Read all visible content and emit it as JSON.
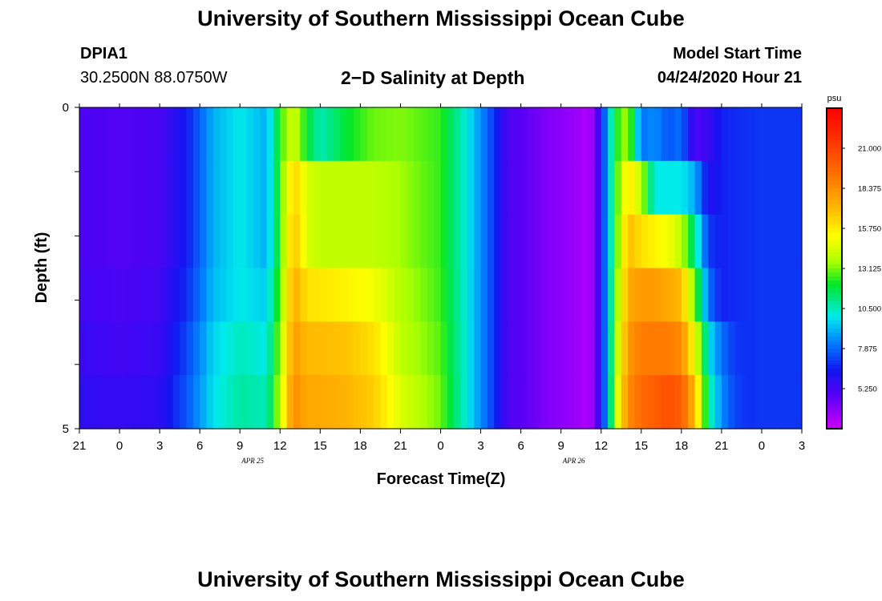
{
  "header": {
    "title": "University of Southern Mississippi Ocean Cube",
    "station": "DPIA1",
    "coords": "30.2500N 88.0750W",
    "chart_title": "2−D Salinity at Depth",
    "model_start_label": "Model Start Time",
    "model_start_value": "04/24/2020 Hour 21"
  },
  "footer": {
    "title": "University of Southern Mississippi Ocean Cube"
  },
  "chart_data": {
    "type": "heatmap",
    "title": "2−D Salinity at Depth",
    "xlabel": "Forecast Time(Z)",
    "ylabel": "Depth (ft)",
    "x_ticks": [
      "21",
      "0",
      "3",
      "6",
      "9",
      "12",
      "15",
      "18",
      "21",
      "0",
      "3",
      "6",
      "9",
      "12",
      "15",
      "18",
      "21",
      "0",
      "3"
    ],
    "x_hours": [
      0,
      3,
      6,
      9,
      12,
      15,
      18,
      21,
      24,
      27,
      30,
      33,
      36,
      39,
      42,
      45,
      48,
      51,
      54
    ],
    "date_labels": [
      {
        "text": "APR  25",
        "hour": 15
      },
      {
        "text": "APR  26",
        "hour": 39
      }
    ],
    "y_ticks": [
      "0",
      "5"
    ],
    "ylim": [
      0,
      5
    ],
    "depth_rows": [
      0,
      1,
      2,
      3,
      4,
      5
    ],
    "colorbar": {
      "unit": "psu",
      "min": 2.625,
      "max": 23.625,
      "ticks": [
        "21.000",
        "18.375",
        "15.750",
        "13.125",
        "10.500",
        "7.875",
        "5.250"
      ],
      "tick_values": [
        21.0,
        18.375,
        15.75,
        13.125,
        10.5,
        7.875,
        5.25
      ]
    },
    "salinity_profiles": [
      {
        "depth": 0,
        "x": [
          0,
          3,
          6,
          8,
          10,
          12,
          14,
          15,
          16,
          17,
          18,
          20,
          22,
          24,
          27,
          29,
          31,
          32,
          33,
          35,
          37,
          38,
          38.5,
          39,
          39.5,
          40,
          41,
          42,
          43,
          44,
          45,
          46,
          47,
          48,
          49,
          50,
          51,
          54
        ],
        "z": [
          5.1,
          4.9,
          5.1,
          6.5,
          9,
          10,
          9,
          12.5,
          14.5,
          12,
          10.5,
          12,
          13,
          13.2,
          12.5,
          10,
          7,
          5,
          4.8,
          4.0,
          3.6,
          3.2,
          3.8,
          6.5,
          9,
          12,
          13.8,
          8,
          8.5,
          7.5,
          8,
          5,
          5.5,
          6.6,
          6.8,
          6.9,
          7.0,
          7.0
        ]
      },
      {
        "depth": 1,
        "x": [
          0,
          3,
          6,
          8,
          10,
          12,
          14,
          15,
          16,
          17,
          18,
          20,
          22,
          24,
          27,
          29,
          31,
          32,
          33,
          35,
          37,
          38,
          38.5,
          39,
          39.5,
          40,
          41,
          42,
          43,
          44,
          45,
          46,
          47,
          48,
          49,
          50,
          51,
          54
        ],
        "z": [
          5.1,
          4.9,
          5.1,
          6.5,
          9,
          10,
          9,
          12.5,
          16.5,
          14.5,
          14,
          14,
          14,
          13.5,
          12.5,
          10,
          7,
          5,
          4.8,
          4.0,
          3.6,
          3.2,
          3.8,
          6.5,
          9,
          12,
          16,
          14,
          10,
          10,
          10,
          9,
          6,
          6.6,
          6.8,
          6.9,
          7.0,
          7.0
        ]
      },
      {
        "depth": 2,
        "x": [
          0,
          3,
          6,
          8,
          10,
          12,
          14,
          15,
          16,
          17,
          18,
          20,
          22,
          24,
          27,
          29,
          31,
          32,
          33,
          35,
          37,
          38,
          38.5,
          39,
          39.5,
          40,
          41,
          42,
          43,
          44,
          45,
          46,
          47,
          48,
          49,
          50,
          51,
          54
        ],
        "z": [
          5.1,
          4.9,
          5.1,
          6.5,
          9,
          10,
          9,
          12.5,
          17,
          14.5,
          14,
          14,
          14,
          13.5,
          12.5,
          10,
          7,
          5,
          4.8,
          4.0,
          3.6,
          3.2,
          3.8,
          6.5,
          9,
          12,
          17,
          16,
          15.5,
          15,
          14,
          11,
          7,
          6.6,
          6.8,
          6.9,
          7.0,
          7.0
        ]
      },
      {
        "depth": 3,
        "x": [
          0,
          3,
          6,
          8,
          10,
          12,
          14,
          15,
          16,
          17,
          18,
          20,
          22,
          24,
          27,
          29,
          31,
          32,
          33,
          35,
          37,
          38,
          38.5,
          39,
          39.5,
          40,
          41,
          42,
          43,
          44,
          45,
          46,
          47,
          48,
          49,
          50,
          51,
          54
        ],
        "z": [
          5.3,
          5.1,
          5.3,
          6.8,
          9.2,
          10,
          9.5,
          13,
          17.5,
          16,
          15.8,
          15.5,
          15,
          13.8,
          12.6,
          10,
          7,
          5,
          4.8,
          4.0,
          3.6,
          3.2,
          3.8,
          6.5,
          9,
          12.5,
          17.5,
          18,
          18,
          17.5,
          17,
          13,
          8,
          6.6,
          6.8,
          6.9,
          7.0,
          7.0
        ]
      },
      {
        "depth": 4,
        "x": [
          0,
          3,
          6,
          8,
          10,
          12,
          14,
          15,
          16,
          17,
          18,
          20,
          22,
          24,
          27,
          29,
          31,
          32,
          33,
          35,
          37,
          38,
          38.5,
          39,
          39.5,
          40,
          41,
          42,
          43,
          44,
          45,
          46,
          47,
          48,
          49,
          50,
          51,
          54
        ],
        "z": [
          5.5,
          5.3,
          5.5,
          7.2,
          9.6,
          10.5,
          10,
          13.5,
          18,
          17,
          17,
          16.8,
          16,
          14,
          12.8,
          10,
          7,
          5,
          4.8,
          4.0,
          3.6,
          3.2,
          3.8,
          6.5,
          9,
          13,
          18,
          19,
          19,
          19,
          18.5,
          15,
          10,
          8,
          7,
          6.9,
          7.0,
          7.0
        ]
      },
      {
        "depth": 5,
        "x": [
          0,
          3,
          6,
          8,
          10,
          12,
          14,
          15,
          16,
          17,
          18,
          20,
          22,
          24,
          27,
          29,
          31,
          32,
          33,
          35,
          37,
          38,
          38.5,
          39,
          39.5,
          40,
          41,
          42,
          43,
          44,
          45,
          46,
          47,
          48,
          49,
          50,
          51,
          54
        ],
        "z": [
          5.8,
          5.6,
          5.8,
          7.5,
          9.8,
          10.8,
          10.5,
          14,
          18.5,
          17.5,
          17.5,
          17.2,
          16.5,
          14.5,
          13,
          10,
          7,
          5,
          4.8,
          4.0,
          3.6,
          3.2,
          3.8,
          6.5,
          9,
          13.5,
          18.5,
          19.5,
          20,
          20.5,
          20,
          17,
          11,
          8.5,
          7.2,
          6.9,
          7.0,
          7.0
        ]
      }
    ]
  }
}
